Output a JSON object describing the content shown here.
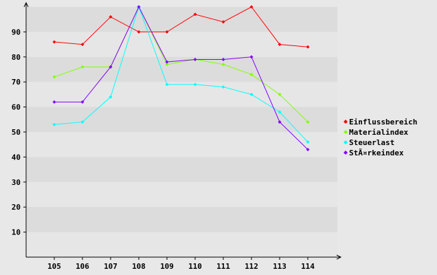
{
  "chart_data": {
    "type": "line",
    "categories": [
      "105",
      "106",
      "107",
      "108",
      "109",
      "110",
      "111",
      "112",
      "113",
      "114"
    ],
    "y_ticks": [
      "10",
      "20",
      "30",
      "40",
      "50",
      "60",
      "70",
      "80",
      "90"
    ],
    "ylim": [
      0,
      100
    ],
    "grid": true,
    "legend_position": "right",
    "series": [
      {
        "name": "Einflussbereich",
        "color": "#ff0000",
        "values": [
          86,
          85,
          96,
          90,
          90,
          97,
          94,
          100,
          85,
          84
        ]
      },
      {
        "name": "Materialindex",
        "color": "#80ff00",
        "values": [
          72,
          76,
          76,
          100,
          77,
          79,
          77,
          73,
          65,
          54
        ]
      },
      {
        "name": "Steuerlast",
        "color": "#00ffff",
        "values": [
          53,
          54,
          64,
          100,
          69,
          69,
          68,
          65,
          58,
          46
        ]
      },
      {
        "name": "StÃ¤rkeindex",
        "color": "#8000ff",
        "values": [
          62,
          62,
          76,
          100,
          78,
          79,
          79,
          80,
          54,
          43
        ]
      }
    ]
  }
}
